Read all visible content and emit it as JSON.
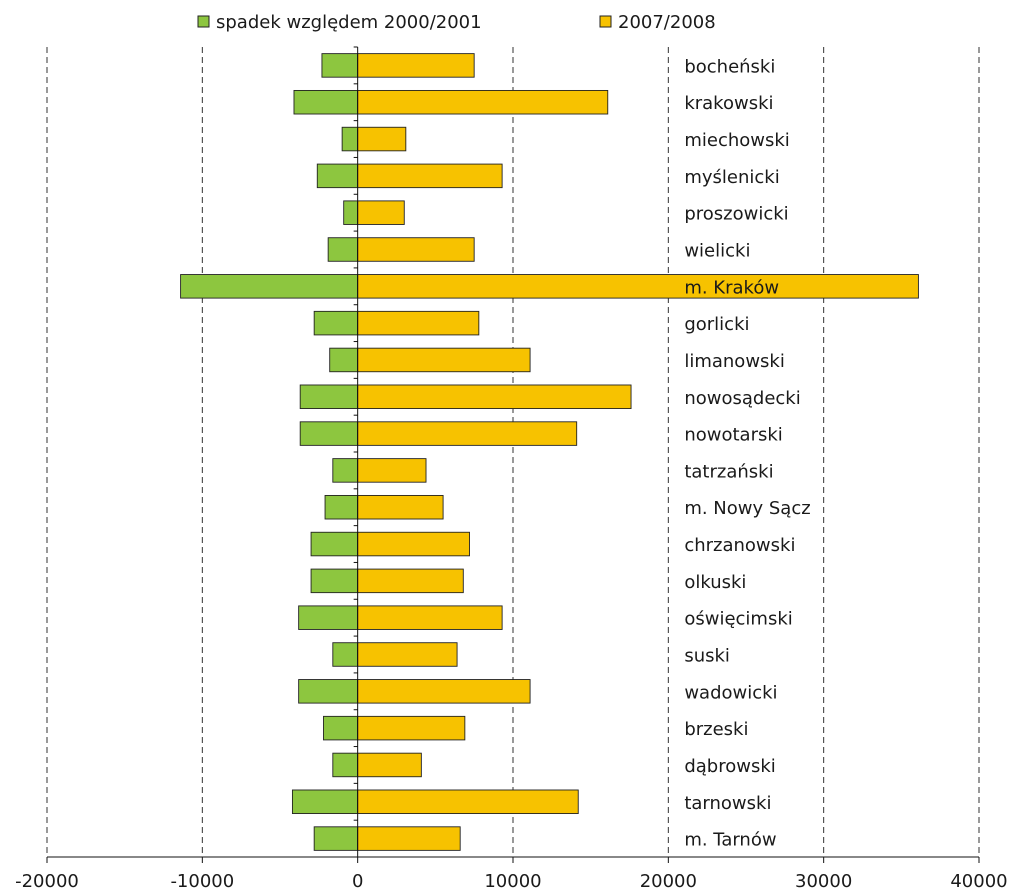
{
  "chart_data": {
    "type": "bar",
    "orientation": "horizontal",
    "title": "",
    "xlabel": "",
    "ylabel": "",
    "xlim": [
      -20000,
      40000
    ],
    "x_ticks": [
      "-20000",
      "-10000",
      "0",
      "10000",
      "20000",
      "30000",
      "40000"
    ],
    "x_tick_values": [
      -20000,
      -10000,
      0,
      10000,
      20000,
      30000,
      40000
    ],
    "grid": "vertical dashed",
    "legend_position": "top",
    "categories": [
      "bocheński",
      "krakowski",
      "miechowski",
      "myślenicki",
      "proszowicki",
      "wielicki",
      "m. Kraków",
      "gorlicki",
      "limanowski",
      "nowosądecki",
      "nowotarski",
      "tatrzański",
      "m. Nowy Sącz",
      "chrzanowski",
      "olkuski",
      "oświęcimski",
      "suski",
      "wadowicki",
      "brzeski",
      "dąbrowski",
      "tarnowski",
      "m. Tarnów"
    ],
    "series": [
      {
        "name": "spadek względem 2000/2001",
        "color": "#8dc63f",
        "values": [
          -2300,
          -4100,
          -1000,
          -2600,
          -900,
          -1900,
          -11400,
          -2800,
          -1800,
          -3700,
          -3700,
          -1600,
          -2100,
          -3000,
          -3000,
          -3800,
          -1600,
          -3800,
          -2200,
          -1600,
          -4200,
          -2800
        ]
      },
      {
        "name": "2007/2008",
        "color": "#f7c200",
        "values": [
          7500,
          16100,
          3100,
          9300,
          3000,
          7500,
          36100,
          7800,
          11100,
          17600,
          14100,
          4400,
          5500,
          7200,
          6800,
          9300,
          6400,
          11100,
          6900,
          4100,
          14200,
          6600
        ]
      }
    ]
  }
}
